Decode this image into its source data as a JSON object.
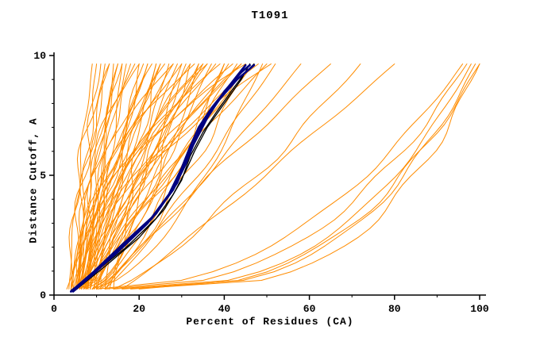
{
  "title": "T1091",
  "chart_data": {
    "type": "line",
    "title": "T1091",
    "xlabel": "Percent of Residues (CA)",
    "ylabel": "Distance Cutoff, A",
    "xlim": [
      0,
      100
    ],
    "ylim": [
      0,
      10
    ],
    "xticks": [
      0,
      20,
      40,
      60,
      80,
      100
    ],
    "xticks_minor": [
      10,
      30,
      50,
      70,
      90
    ],
    "yticks": [
      0,
      5,
      10
    ],
    "yticks_minor": [
      1,
      2,
      3,
      4,
      6,
      7,
      8,
      9
    ],
    "grid": false,
    "legend": false,
    "colors": {
      "orange": "#FF8C00",
      "black": "#000000",
      "navy": "#000080",
      "axis": "#000000",
      "background": "#FFFFFF"
    },
    "curve_y_start": 0.25,
    "curve_y_end": 9.65,
    "note": "Spaghetti plot of per-model cumulative curves: percent of CA residues (x) under a distance cutoff (y). orange_curves are [x_at_bottom, x_at_top, shape_exponent] for monotone curves x(y)=x0+(x1-x0)*t^p; black_curves and navy_curves are explicit [x,y] polylines for the highlighted models.",
    "orange_curves": [
      [
        3.5,
        9,
        1.2
      ],
      [
        4,
        10,
        0.8
      ],
      [
        4.5,
        11,
        1.5
      ],
      [
        5,
        12,
        1.0
      ],
      [
        5.5,
        13,
        2.0
      ],
      [
        6,
        14,
        0.7
      ],
      [
        6.5,
        15,
        1.3
      ],
      [
        7,
        16,
        1.8
      ],
      [
        4,
        17,
        0.9
      ],
      [
        5,
        18,
        1.1
      ],
      [
        6,
        19,
        2.2
      ],
      [
        7,
        20,
        0.6
      ],
      [
        8,
        21,
        1.4
      ],
      [
        4.5,
        22,
        1.0
      ],
      [
        5.5,
        23,
        1.7
      ],
      [
        6.5,
        24,
        0.8
      ],
      [
        7.5,
        25,
        1.2
      ],
      [
        8.5,
        26,
        2.0
      ],
      [
        5,
        27,
        0.7
      ],
      [
        6,
        28,
        1.5
      ],
      [
        7,
        29,
        1.0
      ],
      [
        8,
        30,
        1.9
      ],
      [
        9,
        31,
        0.9
      ],
      [
        5.5,
        32,
        1.3
      ],
      [
        6.5,
        33,
        2.3
      ],
      [
        7.5,
        34,
        0.6
      ],
      [
        8.5,
        35,
        1.1
      ],
      [
        9.5,
        36,
        1.6
      ],
      [
        6,
        37,
        0.8
      ],
      [
        7,
        38,
        1.4
      ],
      [
        8,
        39,
        2.1
      ],
      [
        9,
        40,
        0.7
      ],
      [
        10,
        41,
        1.2
      ],
      [
        6.5,
        42,
        1.8
      ],
      [
        7.5,
        43,
        0.9
      ],
      [
        8.5,
        44,
        1.5
      ],
      [
        9.5,
        45,
        2.4
      ],
      [
        10.5,
        46,
        0.8
      ],
      [
        7,
        47,
        1.1
      ],
      [
        8,
        48,
        1.7
      ],
      [
        9,
        49,
        0.6
      ],
      [
        10,
        50,
        1.3
      ],
      [
        11,
        51,
        2.0
      ],
      [
        12,
        52,
        0.9
      ],
      [
        4,
        13,
        2.5
      ],
      [
        5,
        16,
        0.5
      ],
      [
        6,
        20,
        2.8
      ],
      [
        7,
        24,
        0.55
      ],
      [
        8,
        28,
        2.6
      ],
      [
        9,
        32,
        0.65
      ],
      [
        10,
        36,
        2.2
      ],
      [
        11,
        40,
        0.75
      ],
      [
        12,
        44,
        1.9
      ],
      [
        13,
        30,
        1.0
      ],
      [
        14,
        34,
        1.45
      ],
      [
        3,
        25,
        1.05
      ],
      [
        4,
        35,
        1.55
      ],
      [
        5,
        45,
        0.85
      ],
      [
        6,
        15,
        1.65
      ],
      [
        7,
        22,
        1.25
      ],
      [
        10,
        58,
        0.9
      ],
      [
        12,
        65,
        1.1
      ],
      [
        14,
        72,
        0.8
      ],
      [
        16,
        80,
        0.95
      ],
      [
        12,
        97,
        0.4
      ],
      [
        14,
        98,
        0.35
      ],
      [
        16,
        99,
        0.33
      ],
      [
        18,
        100,
        0.3
      ],
      [
        10,
        96,
        0.45
      ],
      [
        20,
        100,
        0.38
      ]
    ],
    "black_curves": [
      [
        [
          4,
          0.2
        ],
        [
          10,
          1.0
        ],
        [
          17,
          2.0
        ],
        [
          24,
          3.2
        ],
        [
          28,
          4.2
        ],
        [
          31,
          5.2
        ],
        [
          33,
          6.0
        ],
        [
          36,
          7.0
        ],
        [
          40,
          8.0
        ],
        [
          44,
          9.0
        ],
        [
          46,
          9.65
        ]
      ],
      [
        [
          5,
          0.2
        ],
        [
          12,
          1.2
        ],
        [
          20,
          2.4
        ],
        [
          26,
          3.6
        ],
        [
          30,
          4.8
        ],
        [
          32,
          5.8
        ],
        [
          35,
          6.8
        ],
        [
          38,
          7.6
        ],
        [
          42,
          8.6
        ],
        [
          45,
          9.3
        ],
        [
          47,
          9.65
        ]
      ]
    ],
    "navy_curves": [
      [
        [
          4,
          0.15
        ],
        [
          9,
          0.9
        ],
        [
          15,
          1.8
        ],
        [
          22,
          3.0
        ],
        [
          27,
          4.2
        ],
        [
          30,
          5.3
        ],
        [
          32,
          6.2
        ],
        [
          34,
          7.0
        ],
        [
          37,
          7.8
        ],
        [
          41,
          8.7
        ],
        [
          45,
          9.6
        ]
      ],
      [
        [
          4.5,
          0.15
        ],
        [
          10,
          1.0
        ],
        [
          16,
          2.0
        ],
        [
          23,
          3.2
        ],
        [
          28,
          4.4
        ],
        [
          31,
          5.5
        ],
        [
          33,
          6.4
        ],
        [
          35,
          7.2
        ],
        [
          39,
          8.2
        ],
        [
          43,
          9.0
        ],
        [
          47,
          9.6
        ]
      ],
      [
        [
          4,
          0.15
        ],
        [
          9.5,
          1.0
        ],
        [
          16,
          2.1
        ],
        [
          24,
          3.4
        ],
        [
          29,
          4.7
        ],
        [
          31,
          5.7
        ],
        [
          34,
          6.7
        ],
        [
          36,
          7.4
        ],
        [
          40,
          8.5
        ],
        [
          44,
          9.3
        ],
        [
          46,
          9.6
        ]
      ]
    ]
  }
}
